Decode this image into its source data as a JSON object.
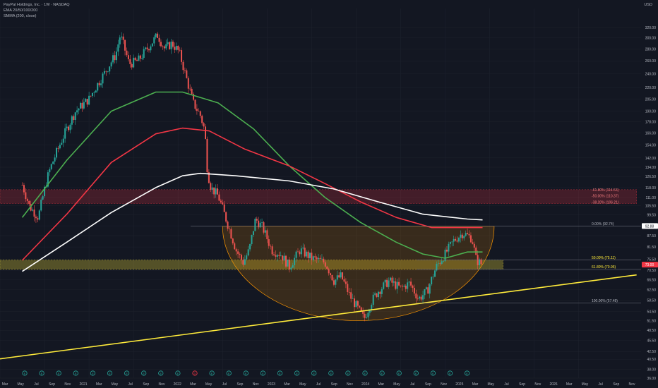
{
  "header": {
    "title": "PayPal Holdings, Inc. · 1W · NASDAQ",
    "indicator_1": "EMA 20/50/100/200",
    "indicator_2": "SMMA (200, close)",
    "currency": "USD"
  },
  "colors": {
    "background": "#131722",
    "up": "#26a69a",
    "down": "#ef5350",
    "ema_green": "#4caf50",
    "ema_red": "#f23645",
    "smma_white": "#ffffff",
    "trendline": "#ffeb3b",
    "bowl": "#ff9800",
    "fib_zone": "#ffeb3b",
    "resistance_zone": "#f23645"
  },
  "chart_data": {
    "type": "candlestick",
    "y_scale": "log",
    "ylim": [
      36,
      330
    ],
    "y_ticks": [
      "320.00",
      "300.00",
      "280.00",
      "260.00",
      "240.00",
      "220.00",
      "205.00",
      "190.00",
      "178.00",
      "166.00",
      "154.00",
      "142.00",
      "134.00",
      "126.50",
      "118.00",
      "111.00",
      "105.50",
      "99.50",
      "93.00",
      "87.50",
      "81.50",
      "75.50",
      "70.50",
      "66.50",
      "62.50",
      "58.50",
      "54.50",
      "51.50",
      "48.50",
      "45.50",
      "42.50",
      "40.50",
      "38.00",
      "36.00"
    ],
    "x_ticks": [
      "Mar",
      "May",
      "Jul",
      "Sep",
      "Nov",
      "2021",
      "Mar",
      "May",
      "Jul",
      "Sep",
      "Nov",
      "2022",
      "Mar",
      "May",
      "Jul",
      "Sep",
      "Nov",
      "2023",
      "Mar",
      "May",
      "Jul",
      "Sep",
      "Nov",
      "2024",
      "Mar",
      "May",
      "Jul",
      "Sep",
      "Nov",
      "2025",
      "Mar",
      "May",
      "Jul",
      "Sep",
      "Nov",
      "2026",
      "Mar",
      "May",
      "Jul",
      "Sep",
      "Nov"
    ],
    "price_path": [
      [
        2020.0,
        120
      ],
      [
        2020.08,
        105
      ],
      [
        2020.18,
        98
      ],
      [
        2020.3,
        130
      ],
      [
        2020.45,
        160
      ],
      [
        2020.6,
        190
      ],
      [
        2020.75,
        205
      ],
      [
        2020.92,
        240
      ],
      [
        2021.05,
        270
      ],
      [
        2021.1,
        305
      ],
      [
        2021.2,
        255
      ],
      [
        2021.3,
        260
      ],
      [
        2021.4,
        280
      ],
      [
        2021.52,
        305
      ],
      [
        2021.6,
        280
      ],
      [
        2021.68,
        290
      ],
      [
        2021.76,
        275
      ],
      [
        2021.85,
        230
      ],
      [
        2021.92,
        200
      ],
      [
        2022.0,
        185
      ],
      [
        2022.05,
        168
      ],
      [
        2022.08,
        130
      ],
      [
        2022.12,
        118
      ],
      [
        2022.2,
        112
      ],
      [
        2022.3,
        95
      ],
      [
        2022.4,
        80
      ],
      [
        2022.48,
        74
      ],
      [
        2022.55,
        80
      ],
      [
        2022.62,
        97
      ],
      [
        2022.7,
        92
      ],
      [
        2022.8,
        80
      ],
      [
        2022.9,
        78
      ],
      [
        2023.0,
        72
      ],
      [
        2023.12,
        80
      ],
      [
        2023.25,
        76
      ],
      [
        2023.4,
        74
      ],
      [
        2023.5,
        66
      ],
      [
        2023.58,
        68
      ],
      [
        2023.68,
        60
      ],
      [
        2023.76,
        56
      ],
      [
        2023.84,
        52
      ],
      [
        2023.92,
        58
      ],
      [
        2024.0,
        62
      ],
      [
        2024.12,
        66
      ],
      [
        2024.25,
        63
      ],
      [
        2024.35,
        65
      ],
      [
        2024.45,
        59
      ],
      [
        2024.55,
        62
      ],
      [
        2024.65,
        72
      ],
      [
        2024.75,
        78
      ],
      [
        2024.85,
        85
      ],
      [
        2024.95,
        89
      ],
      [
        2025.02,
        87
      ],
      [
        2025.05,
        86
      ],
      [
        2025.1,
        75
      ],
      [
        2025.17,
        73
      ]
    ],
    "series": [
      {
        "name": "EMA 20/50/100/200",
        "color": "#4caf50",
        "points": [
          [
            2020.0,
            98
          ],
          [
            2020.5,
            140
          ],
          [
            2021.0,
            190
          ],
          [
            2021.5,
            214
          ],
          [
            2021.8,
            214
          ],
          [
            2022.2,
            200
          ],
          [
            2022.6,
            170
          ],
          [
            2023.0,
            135
          ],
          [
            2023.4,
            111
          ],
          [
            2023.8,
            95
          ],
          [
            2024.2,
            84
          ],
          [
            2024.5,
            78
          ],
          [
            2024.75,
            76
          ],
          [
            2025.0,
            79
          ],
          [
            2025.17,
            79
          ]
        ]
      },
      {
        "name": "EMA 20/50/100/200",
        "color": "#f23645",
        "points": [
          [
            2020.0,
            75
          ],
          [
            2020.5,
            100
          ],
          [
            2021.0,
            138
          ],
          [
            2021.5,
            165
          ],
          [
            2021.8,
            171
          ],
          [
            2022.1,
            168
          ],
          [
            2022.5,
            150
          ],
          [
            2023.0,
            135
          ],
          [
            2023.4,
            121
          ],
          [
            2023.8,
            108
          ],
          [
            2024.2,
            98
          ],
          [
            2024.6,
            92
          ],
          [
            2025.0,
            92
          ],
          [
            2025.17,
            92
          ]
        ]
      },
      {
        "name": "SMMA (200, close)",
        "color": "#ffffff",
        "points": [
          [
            2020.0,
            70
          ],
          [
            2020.5,
            84
          ],
          [
            2021.0,
            101
          ],
          [
            2021.5,
            118
          ],
          [
            2021.8,
            127
          ],
          [
            2022.0,
            129
          ],
          [
            2022.4,
            127
          ],
          [
            2023.0,
            123
          ],
          [
            2023.5,
            117
          ],
          [
            2024.0,
            108
          ],
          [
            2024.5,
            100
          ],
          [
            2025.0,
            97
          ],
          [
            2025.17,
            96.5
          ]
        ]
      }
    ],
    "trendline": {
      "points": [
        [
          2019.75,
          40.6
        ],
        [
          2026.9,
          68.5
        ]
      ],
      "color": "#ffeb3b"
    },
    "zones": [
      {
        "name": "resistance",
        "low": 106.8,
        "high": 116.5,
        "x_start": 2019.75,
        "x_end": 2026.9
      },
      {
        "name": "fib_zone",
        "low": 70.95,
        "high": 75.11,
        "x_start": 2019.75,
        "x_end": 2025.4
      }
    ],
    "bowl": {
      "x_start": 2022.25,
      "x_end": 2025.3,
      "top": 92.74,
      "bottom": 51.5
    },
    "fib_levels": [
      {
        "label": "0.00% (92.74)",
        "value": 92.74
      },
      {
        "label": "50.00% (75.11)",
        "value": 75.11
      },
      {
        "label": "61.80% (70.95)",
        "value": 70.95
      },
      {
        "label": "100.00% (57.48)",
        "value": 57.48
      },
      {
        "label": "-61.80% (114.53)",
        "value": 114.53
      },
      {
        "label": "-50.00% (110.37)",
        "value": 110.37
      },
      {
        "label": "-38.20% (106.21)",
        "value": 106.21
      }
    ],
    "price_labels": [
      {
        "text": "92.88",
        "value": 92.88,
        "kind": "level"
      },
      {
        "text": "73.00",
        "value": 73.0,
        "kind": "current"
      }
    ],
    "event_markers": [
      "E",
      "E",
      "E",
      "E",
      "E",
      "E",
      "E",
      "E",
      "E",
      "E",
      "D",
      "E",
      "E",
      "E",
      "E",
      "E",
      "E",
      "E",
      "E",
      "E",
      "E",
      "E",
      "E",
      "E",
      "E",
      "E",
      "E"
    ]
  }
}
